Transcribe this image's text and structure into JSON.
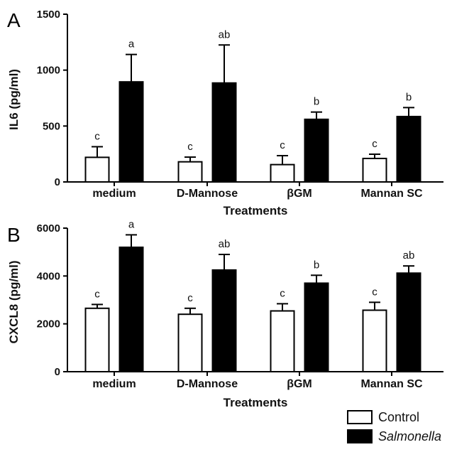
{
  "legend": {
    "control_label": "Control",
    "salmonella_label": "Salmonella"
  },
  "chart_data": [
    {
      "type": "bar",
      "panel": "A",
      "title": "",
      "xlabel": "Treatments",
      "ylabel": "IL6 (pg/ml)",
      "ylim": [
        0,
        1500
      ],
      "yticks": [
        0,
        500,
        1000,
        1500
      ],
      "categories": [
        "medium",
        "D-Mannose",
        "βGM",
        "Mannan SC"
      ],
      "series": [
        {
          "name": "Control",
          "color": "#ffffff",
          "values": [
            220,
            180,
            155,
            210
          ],
          "errors": [
            95,
            42,
            80,
            38
          ],
          "letters": [
            "c",
            "c",
            "c",
            "c"
          ]
        },
        {
          "name": "Salmonella",
          "color": "#000000",
          "values": [
            895,
            885,
            560,
            585
          ],
          "errors": [
            245,
            340,
            65,
            80
          ],
          "letters": [
            "a",
            "ab",
            "b",
            "b"
          ]
        }
      ]
    },
    {
      "type": "bar",
      "panel": "B",
      "title": "",
      "xlabel": "Treatments",
      "ylabel": "CXCL8 (pg/ml)",
      "ylim": [
        0,
        6000
      ],
      "yticks": [
        0,
        2000,
        4000,
        6000
      ],
      "categories": [
        "medium",
        "D-Mannose",
        "βGM",
        "Mannan SC"
      ],
      "series": [
        {
          "name": "Control",
          "color": "#ffffff",
          "values": [
            2650,
            2400,
            2540,
            2570
          ],
          "errors": [
            160,
            250,
            300,
            330
          ],
          "letters": [
            "c",
            "c",
            "c",
            "c"
          ]
        },
        {
          "name": "Salmonella",
          "color": "#000000",
          "values": [
            5200,
            4250,
            3700,
            4120
          ],
          "errors": [
            520,
            650,
            330,
            300
          ],
          "letters": [
            "a",
            "ab",
            "b",
            "ab"
          ]
        }
      ]
    }
  ]
}
